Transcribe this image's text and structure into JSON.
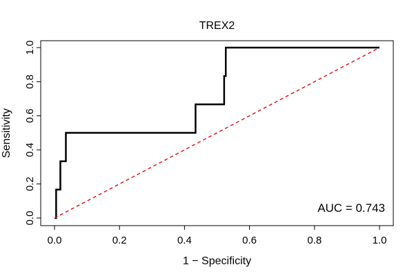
{
  "chart_data": {
    "type": "line",
    "title": "TREX2",
    "xlabel": "1 − Specificity",
    "ylabel": "Sensitivity",
    "xlim": [
      0,
      1
    ],
    "ylim": [
      0,
      1
    ],
    "x_ticks": [
      0.0,
      0.2,
      0.4,
      0.6,
      0.8,
      1.0
    ],
    "x_tick_labels": [
      "0.0",
      "0.2",
      "0.4",
      "0.6",
      "0.8",
      "1.0"
    ],
    "y_ticks": [
      0.0,
      0.2,
      0.4,
      0.6,
      0.8,
      1.0
    ],
    "y_tick_labels": [
      "0.0",
      "0.2",
      "0.4",
      "0.6",
      "0.8",
      "1.0"
    ],
    "grid": false,
    "series": [
      {
        "name": "ROC curve",
        "color": "#000000",
        "style": "solid",
        "x": [
          0.0,
          0.005,
          0.005,
          0.018,
          0.018,
          0.035,
          0.035,
          0.21,
          0.434,
          0.434,
          0.522,
          0.522,
          0.527,
          0.527,
          1.0
        ],
        "y": [
          0.0,
          0.0,
          0.167,
          0.167,
          0.333,
          0.333,
          0.5,
          0.5,
          0.5,
          0.667,
          0.667,
          0.833,
          0.833,
          1.0,
          1.0
        ]
      },
      {
        "name": "Reference line",
        "color": "#e31a1c",
        "style": "dashed",
        "x": [
          0.0,
          1.0
        ],
        "y": [
          0.0,
          1.0
        ]
      }
    ],
    "annotation": "AUC = 0.743"
  }
}
